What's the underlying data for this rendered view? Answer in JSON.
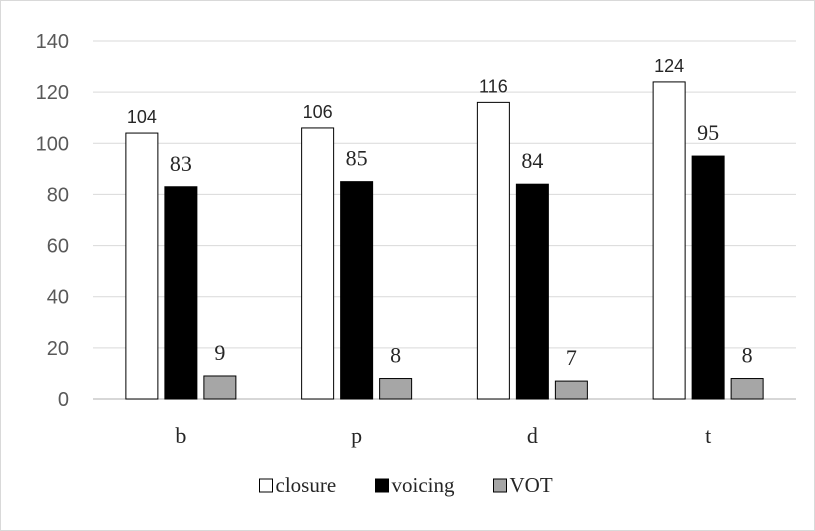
{
  "chart_data": {
    "type": "bar",
    "categories": [
      "b",
      "p",
      "d",
      "t"
    ],
    "ylim": [
      0,
      140
    ],
    "yticks": [
      0,
      20,
      40,
      60,
      80,
      100,
      120,
      140
    ],
    "grid": true,
    "legend_position": "bottom",
    "title": "",
    "xlabel": "",
    "ylabel": "",
    "series": [
      {
        "name": "closure",
        "values": [
          104,
          106,
          116,
          124
        ],
        "color": "#ffffff"
      },
      {
        "name": "voicing",
        "values": [
          83,
          85,
          84,
          95
        ],
        "color": "#000000"
      },
      {
        "name": "VOT",
        "values": [
          9,
          8,
          7,
          8
        ],
        "color": "#a6a6a6"
      }
    ]
  }
}
